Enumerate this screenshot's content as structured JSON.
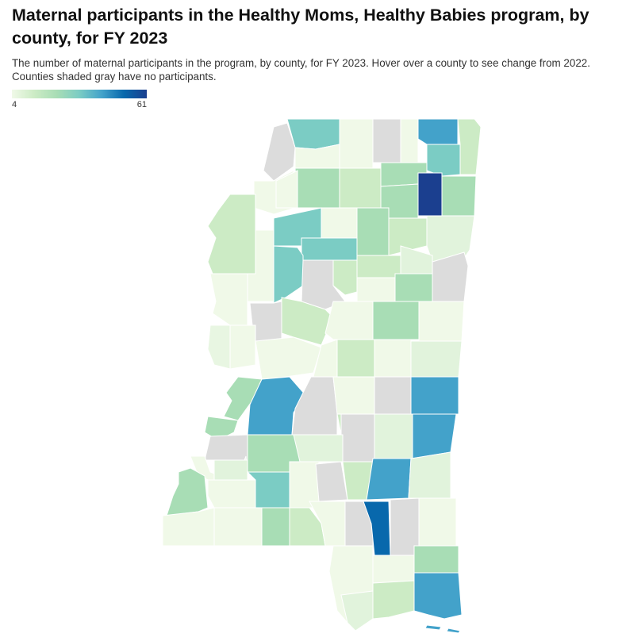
{
  "header": {
    "title": "Maternal participants in the Healthy Moms, Healthy Babies program, by county, for FY 2023",
    "subtitle": "The number of maternal participants in the program, by county, for FY 2023. Hover over a county to see change from 2022. Counties shaded gray have no participants."
  },
  "legend": {
    "min_label": "4",
    "max_label": "61"
  },
  "colors": {
    "no_data": "#dcdcdc",
    "scale": [
      "#f0f9e8",
      "#ccebc5",
      "#a8ddb5",
      "#7bccc4",
      "#43a2ca",
      "#0868ac",
      "#1b3f8f"
    ]
  }
}
